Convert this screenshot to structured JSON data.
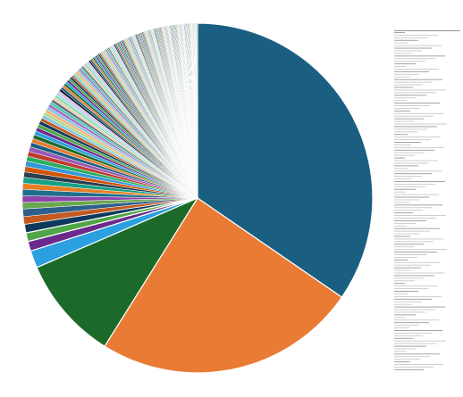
{
  "chart_data": {
    "type": "pie",
    "title": "",
    "slice_count": 180,
    "major_slices": [
      {
        "value": 34.6,
        "color": "#1a5f82"
      },
      {
        "value": 24.3,
        "color": "#e97b34"
      },
      {
        "value": 9.6,
        "color": "#1c6a2a"
      },
      {
        "value": 1.6,
        "color": "#2aa0e0"
      },
      {
        "value": 0.9,
        "color": "#6b2a8c"
      },
      {
        "value": 0.8,
        "color": "#4fa648"
      },
      {
        "value": 0.8,
        "color": "#0d3a5c"
      },
      {
        "value": 0.7,
        "color": "#c45a22"
      },
      {
        "value": 0.7,
        "color": "#2d5f8a"
      },
      {
        "value": 0.6,
        "color": "#6aa84f"
      },
      {
        "value": 0.6,
        "color": "#8e44ad"
      },
      {
        "value": 0.6,
        "color": "#1f6e8c"
      },
      {
        "value": 0.55,
        "color": "#e67e22"
      },
      {
        "value": 0.55,
        "color": "#16a085"
      },
      {
        "value": 0.5,
        "color": "#2c3e50"
      },
      {
        "value": 0.5,
        "color": "#d35400"
      },
      {
        "value": 0.5,
        "color": "#3498db"
      },
      {
        "value": 0.45,
        "color": "#27ae60"
      },
      {
        "value": 0.45,
        "color": "#c0392b"
      },
      {
        "value": 0.45,
        "color": "#9b59b6"
      }
    ],
    "minor_slice_palette": [
      "#1a5f82",
      "#e97b34",
      "#1c6a2a",
      "#2aa0e0",
      "#6b2a8c",
      "#4fa648",
      "#0d3a5c",
      "#c45a22",
      "#7fc8e6",
      "#b3d88c",
      "#f0b27a",
      "#85c1e9",
      "#a569bd",
      "#48c9b0",
      "#5d6d7e",
      "#f5cba7",
      "#82e0aa",
      "#aed6f1",
      "#d7bde2",
      "#17202a"
    ],
    "legend": {
      "placement": "right",
      "item_count": 130
    },
    "grid": false
  }
}
